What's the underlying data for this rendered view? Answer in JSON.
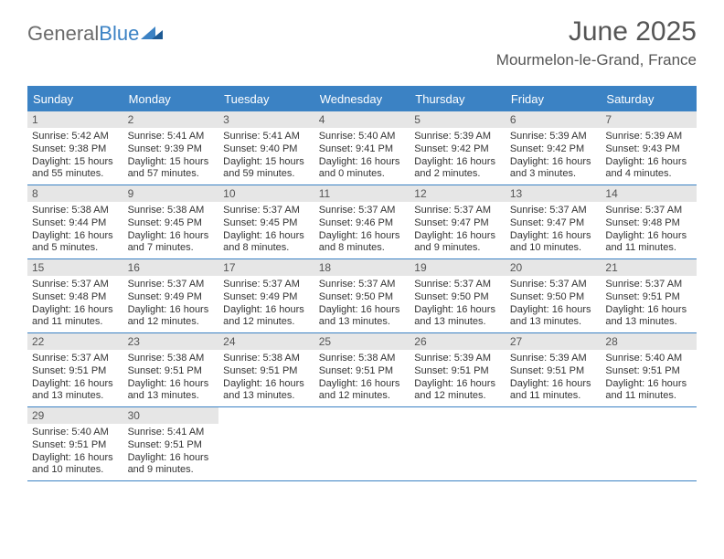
{
  "brand": {
    "part1": "General",
    "part2": "Blue"
  },
  "title": "June 2025",
  "location": "Mourmelon-le-Grand, France",
  "header_bg": "#3b82c4",
  "day_labels": [
    "Sunday",
    "Monday",
    "Tuesday",
    "Wednesday",
    "Thursday",
    "Friday",
    "Saturday"
  ],
  "weeks": [
    [
      {
        "n": "1",
        "sr": "Sunrise: 5:42 AM",
        "ss": "Sunset: 9:38 PM",
        "d1": "Daylight: 15 hours",
        "d2": "and 55 minutes."
      },
      {
        "n": "2",
        "sr": "Sunrise: 5:41 AM",
        "ss": "Sunset: 9:39 PM",
        "d1": "Daylight: 15 hours",
        "d2": "and 57 minutes."
      },
      {
        "n": "3",
        "sr": "Sunrise: 5:41 AM",
        "ss": "Sunset: 9:40 PM",
        "d1": "Daylight: 15 hours",
        "d2": "and 59 minutes."
      },
      {
        "n": "4",
        "sr": "Sunrise: 5:40 AM",
        "ss": "Sunset: 9:41 PM",
        "d1": "Daylight: 16 hours",
        "d2": "and 0 minutes."
      },
      {
        "n": "5",
        "sr": "Sunrise: 5:39 AM",
        "ss": "Sunset: 9:42 PM",
        "d1": "Daylight: 16 hours",
        "d2": "and 2 minutes."
      },
      {
        "n": "6",
        "sr": "Sunrise: 5:39 AM",
        "ss": "Sunset: 9:42 PM",
        "d1": "Daylight: 16 hours",
        "d2": "and 3 minutes."
      },
      {
        "n": "7",
        "sr": "Sunrise: 5:39 AM",
        "ss": "Sunset: 9:43 PM",
        "d1": "Daylight: 16 hours",
        "d2": "and 4 minutes."
      }
    ],
    [
      {
        "n": "8",
        "sr": "Sunrise: 5:38 AM",
        "ss": "Sunset: 9:44 PM",
        "d1": "Daylight: 16 hours",
        "d2": "and 5 minutes."
      },
      {
        "n": "9",
        "sr": "Sunrise: 5:38 AM",
        "ss": "Sunset: 9:45 PM",
        "d1": "Daylight: 16 hours",
        "d2": "and 7 minutes."
      },
      {
        "n": "10",
        "sr": "Sunrise: 5:37 AM",
        "ss": "Sunset: 9:45 PM",
        "d1": "Daylight: 16 hours",
        "d2": "and 8 minutes."
      },
      {
        "n": "11",
        "sr": "Sunrise: 5:37 AM",
        "ss": "Sunset: 9:46 PM",
        "d1": "Daylight: 16 hours",
        "d2": "and 8 minutes."
      },
      {
        "n": "12",
        "sr": "Sunrise: 5:37 AM",
        "ss": "Sunset: 9:47 PM",
        "d1": "Daylight: 16 hours",
        "d2": "and 9 minutes."
      },
      {
        "n": "13",
        "sr": "Sunrise: 5:37 AM",
        "ss": "Sunset: 9:47 PM",
        "d1": "Daylight: 16 hours",
        "d2": "and 10 minutes."
      },
      {
        "n": "14",
        "sr": "Sunrise: 5:37 AM",
        "ss": "Sunset: 9:48 PM",
        "d1": "Daylight: 16 hours",
        "d2": "and 11 minutes."
      }
    ],
    [
      {
        "n": "15",
        "sr": "Sunrise: 5:37 AM",
        "ss": "Sunset: 9:48 PM",
        "d1": "Daylight: 16 hours",
        "d2": "and 11 minutes."
      },
      {
        "n": "16",
        "sr": "Sunrise: 5:37 AM",
        "ss": "Sunset: 9:49 PM",
        "d1": "Daylight: 16 hours",
        "d2": "and 12 minutes."
      },
      {
        "n": "17",
        "sr": "Sunrise: 5:37 AM",
        "ss": "Sunset: 9:49 PM",
        "d1": "Daylight: 16 hours",
        "d2": "and 12 minutes."
      },
      {
        "n": "18",
        "sr": "Sunrise: 5:37 AM",
        "ss": "Sunset: 9:50 PM",
        "d1": "Daylight: 16 hours",
        "d2": "and 13 minutes."
      },
      {
        "n": "19",
        "sr": "Sunrise: 5:37 AM",
        "ss": "Sunset: 9:50 PM",
        "d1": "Daylight: 16 hours",
        "d2": "and 13 minutes."
      },
      {
        "n": "20",
        "sr": "Sunrise: 5:37 AM",
        "ss": "Sunset: 9:50 PM",
        "d1": "Daylight: 16 hours",
        "d2": "and 13 minutes."
      },
      {
        "n": "21",
        "sr": "Sunrise: 5:37 AM",
        "ss": "Sunset: 9:51 PM",
        "d1": "Daylight: 16 hours",
        "d2": "and 13 minutes."
      }
    ],
    [
      {
        "n": "22",
        "sr": "Sunrise: 5:37 AM",
        "ss": "Sunset: 9:51 PM",
        "d1": "Daylight: 16 hours",
        "d2": "and 13 minutes."
      },
      {
        "n": "23",
        "sr": "Sunrise: 5:38 AM",
        "ss": "Sunset: 9:51 PM",
        "d1": "Daylight: 16 hours",
        "d2": "and 13 minutes."
      },
      {
        "n": "24",
        "sr": "Sunrise: 5:38 AM",
        "ss": "Sunset: 9:51 PM",
        "d1": "Daylight: 16 hours",
        "d2": "and 13 minutes."
      },
      {
        "n": "25",
        "sr": "Sunrise: 5:38 AM",
        "ss": "Sunset: 9:51 PM",
        "d1": "Daylight: 16 hours",
        "d2": "and 12 minutes."
      },
      {
        "n": "26",
        "sr": "Sunrise: 5:39 AM",
        "ss": "Sunset: 9:51 PM",
        "d1": "Daylight: 16 hours",
        "d2": "and 12 minutes."
      },
      {
        "n": "27",
        "sr": "Sunrise: 5:39 AM",
        "ss": "Sunset: 9:51 PM",
        "d1": "Daylight: 16 hours",
        "d2": "and 11 minutes."
      },
      {
        "n": "28",
        "sr": "Sunrise: 5:40 AM",
        "ss": "Sunset: 9:51 PM",
        "d1": "Daylight: 16 hours",
        "d2": "and 11 minutes."
      }
    ],
    [
      {
        "n": "29",
        "sr": "Sunrise: 5:40 AM",
        "ss": "Sunset: 9:51 PM",
        "d1": "Daylight: 16 hours",
        "d2": "and 10 minutes."
      },
      {
        "n": "30",
        "sr": "Sunrise: 5:41 AM",
        "ss": "Sunset: 9:51 PM",
        "d1": "Daylight: 16 hours",
        "d2": "and 9 minutes."
      },
      null,
      null,
      null,
      null,
      null
    ]
  ]
}
